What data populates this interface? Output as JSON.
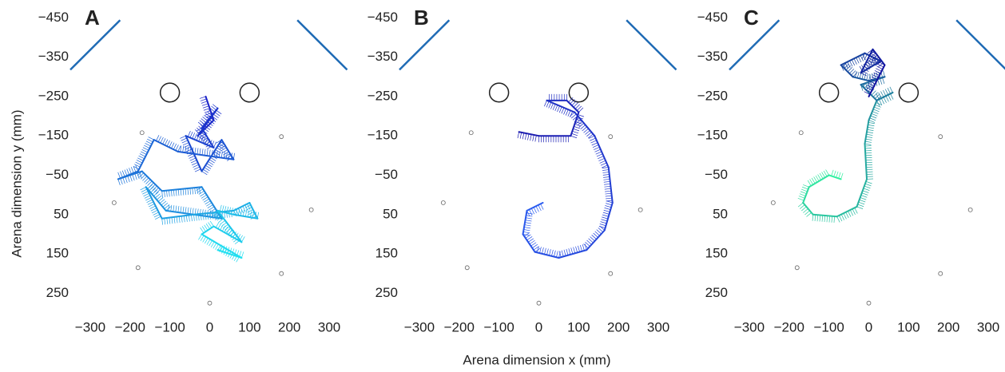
{
  "x_label": "Arena dimension x (mm)",
  "y_label": "Arena dimension y (mm)",
  "chart_data": [
    {
      "type": "trajectory",
      "panel": "A",
      "xlim": [
        -350,
        350
      ],
      "ylim": [
        -475,
        300
      ],
      "xticks": [
        {
          "value": -300,
          "label": "−300"
        },
        {
          "value": -200,
          "label": "−200"
        },
        {
          "value": -100,
          "label": "−100"
        },
        0,
        100,
        200,
        300
      ],
      "yticks": [
        {
          "value": -450,
          "label": "−450"
        },
        {
          "value": -350,
          "label": "−350"
        },
        {
          "value": -250,
          "label": "−250"
        },
        {
          "value": -150,
          "label": "−150"
        },
        {
          "value": -50,
          "label": "−50"
        },
        50,
        150,
        250
      ],
      "walls": [
        {
          "x": [
            -350,
            -225
          ],
          "y": [
            -318,
            -444
          ],
          "color": "#1f6bb5"
        },
        {
          "x": [
            220,
            345
          ],
          "y": [
            -444,
            -318
          ],
          "color": "#1f6bb5"
        }
      ],
      "objects": {
        "x": [
          -100,
          100
        ],
        "y": [
          -260,
          -260
        ],
        "r": 24
      },
      "landmarks": {
        "x": [
          -170,
          180,
          -240,
          255,
          -180,
          180,
          0
        ],
        "y": [
          -158,
          -148,
          20,
          38,
          185,
          200,
          275
        ]
      },
      "series": [
        {
          "colors": [
            "#1a22c8",
            "#20e0f0"
          ],
          "x": [
            -10,
            10,
            -30,
            20,
            -20,
            10,
            -60,
            -20,
            30,
            60,
            -80,
            -140,
            -180,
            -230,
            -170,
            -120,
            -20,
            30,
            -110,
            -160,
            -120,
            -40,
            60,
            100,
            120,
            60,
            20,
            80,
            10,
            -20,
            80,
            20
          ],
          "y": [
            -250,
            -190,
            -150,
            -220,
            -170,
            -120,
            -150,
            -60,
            -140,
            -90,
            -110,
            -140,
            -60,
            -40,
            -60,
            -10,
            -20,
            60,
            40,
            -20,
            60,
            50,
            40,
            20,
            60,
            50,
            40,
            120,
            80,
            100,
            160,
            140
          ]
        }
      ]
    },
    {
      "type": "trajectory",
      "panel": "B",
      "xlim": [
        -350,
        350
      ],
      "ylim": [
        -475,
        300
      ],
      "xticks": [
        {
          "value": -300,
          "label": "−300"
        },
        {
          "value": -200,
          "label": "−200"
        },
        {
          "value": -100,
          "label": "−100"
        },
        0,
        100,
        200,
        300
      ],
      "yticks": [
        {
          "value": -450,
          "label": "−450"
        },
        {
          "value": -350,
          "label": "−350"
        },
        {
          "value": -250,
          "label": "−250"
        },
        {
          "value": -150,
          "label": "−150"
        },
        {
          "value": -50,
          "label": "−50"
        },
        50,
        150,
        250
      ],
      "walls": [
        {
          "x": [
            -350,
            -225
          ],
          "y": [
            -318,
            -444
          ],
          "color": "#1f6bb5"
        },
        {
          "x": [
            220,
            345
          ],
          "y": [
            -444,
            -318
          ],
          "color": "#1f6bb5"
        }
      ],
      "objects": {
        "x": [
          -100,
          100
        ],
        "y": [
          -260,
          -260
        ],
        "r": 24
      },
      "landmarks": {
        "x": [
          -170,
          180,
          -240,
          255,
          -180,
          180,
          0
        ],
        "y": [
          -158,
          -148,
          20,
          38,
          185,
          200,
          275
        ]
      },
      "series": [
        {
          "colors": [
            "#1b1bb0",
            "#2a5cf0"
          ],
          "x": [
            -50,
            0,
            80,
            100,
            70,
            20,
            90,
            140,
            175,
            185,
            165,
            120,
            50,
            -10,
            -40,
            -30,
            10
          ],
          "y": [
            -160,
            -150,
            -150,
            -210,
            -240,
            -240,
            -210,
            -150,
            -70,
            20,
            90,
            140,
            160,
            145,
            100,
            40,
            20
          ]
        }
      ]
    },
    {
      "type": "trajectory",
      "panel": "C",
      "xlim": [
        -350,
        350
      ],
      "ylim": [
        -475,
        300
      ],
      "xticks": [
        {
          "value": -300,
          "label": "−300"
        },
        {
          "value": -200,
          "label": "−200"
        },
        {
          "value": -100,
          "label": "−100"
        },
        0,
        100,
        200,
        300
      ],
      "yticks": [
        {
          "value": -450,
          "label": "−450"
        },
        {
          "value": -350,
          "label": "−350"
        },
        {
          "value": -250,
          "label": "−250"
        },
        {
          "value": -150,
          "label": "−150"
        },
        {
          "value": -50,
          "label": "−50"
        },
        50,
        150,
        250
      ],
      "walls": [
        {
          "x": [
            -350,
            -225
          ],
          "y": [
            -318,
            -444
          ],
          "color": "#1f6bb5"
        },
        {
          "x": [
            220,
            345
          ],
          "y": [
            -444,
            -318
          ],
          "color": "#1f6bb5"
        }
      ],
      "objects": {
        "x": [
          -100,
          100
        ],
        "y": [
          -260,
          -260
        ],
        "r": 24
      },
      "landmarks": {
        "x": [
          -170,
          180,
          -240,
          255,
          -180,
          180,
          0
        ],
        "y": [
          -158,
          -148,
          20,
          38,
          185,
          200,
          275
        ]
      },
      "series": [
        {
          "colors": [
            "#30f0a0",
            "#1010a0"
          ],
          "x": [
            -70,
            -100,
            -150,
            -165,
            -140,
            -80,
            -30,
            -5,
            -10,
            0,
            20,
            60,
            20,
            -20,
            40,
            0,
            -40,
            -70,
            -10,
            30,
            -20,
            10,
            40,
            0
          ],
          "y": [
            -40,
            -50,
            -20,
            20,
            50,
            55,
            30,
            -40,
            -130,
            -190,
            -240,
            -260,
            -240,
            -280,
            -300,
            -290,
            -300,
            -330,
            -360,
            -340,
            -310,
            -370,
            -330,
            -250
          ]
        }
      ]
    }
  ]
}
